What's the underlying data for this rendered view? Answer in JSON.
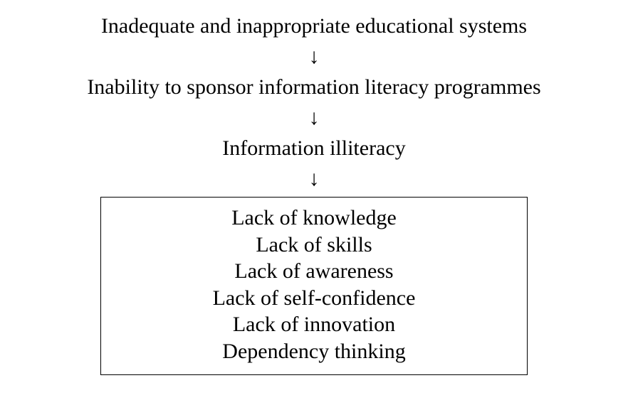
{
  "diagram": {
    "type": "flowchart",
    "font_family": "Times New Roman",
    "font_size": 30,
    "text_color": "#000000",
    "background_color": "#ffffff",
    "border_color": "#000000",
    "border_width": 1,
    "arrow_glyph": "↓",
    "nodes": [
      {
        "label": "Inadequate and inappropriate educational systems"
      },
      {
        "label": "Inability to sponsor information literacy programmes"
      },
      {
        "label": "Information illiteracy"
      }
    ],
    "outcomes": [
      "Lack of knowledge",
      "Lack of skills",
      "Lack of awareness",
      "Lack of self-confidence",
      "Lack of innovation",
      "Dependency thinking"
    ],
    "outcome_box_width": 600
  }
}
